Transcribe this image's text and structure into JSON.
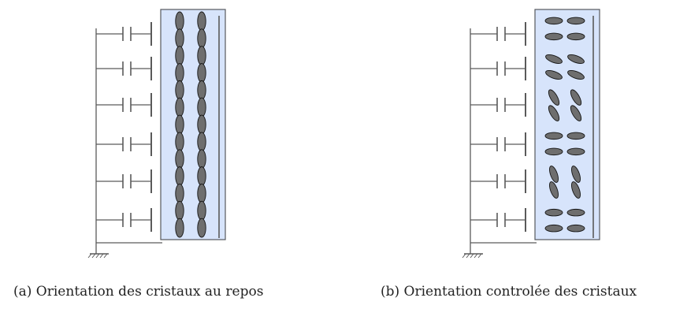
{
  "figure": {
    "colors": {
      "cell_fill": "#d7e4fb",
      "cell_border": "#56595e",
      "crystal_fill": "#6e6e6e",
      "crystal_stroke": "#141414",
      "wire": "#5a5a5a"
    },
    "icons": {
      "ground": "ground-icon",
      "capacitor": "capacitor-icon",
      "crystal": "liquid-crystal-icon"
    },
    "panels": [
      {
        "id": "a",
        "caption": "(a) Orientation des cristaux au repos",
        "electrode_count": 6,
        "crystal_state": "rest-vertical",
        "crystal_angles_deg": [
          90,
          90,
          90,
          90,
          90,
          90
        ]
      },
      {
        "id": "b",
        "caption": "(b) Orientation controlée des cristaux",
        "electrode_count": 6,
        "crystal_state": "controlled",
        "crystal_angles_deg": [
          0,
          20,
          60,
          0,
          70,
          0
        ]
      }
    ]
  }
}
